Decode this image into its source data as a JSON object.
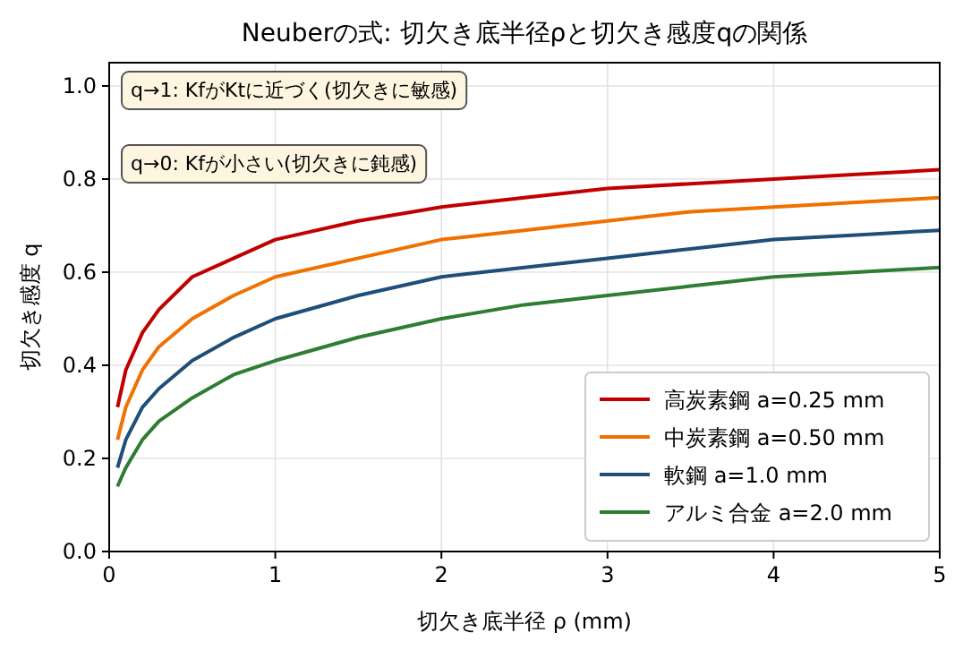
{
  "chart_data": {
    "type": "line",
    "title": "Neuberの式: 切欠き底半径ρと切欠き感度qの関係",
    "xlabel": "切欠き底半径 ρ (mm)",
    "ylabel": "切欠き感度 q",
    "x": [
      0.05,
      0.1,
      0.2,
      0.3,
      0.5,
      0.75,
      1,
      1.5,
      2,
      2.5,
      3,
      3.5,
      4,
      4.5,
      5
    ],
    "series": [
      {
        "name": "高炭素鋼 a=0.25 mm",
        "color": "#c00000",
        "values": [
          0.31,
          0.39,
          0.47,
          0.52,
          0.59,
          0.63,
          0.67,
          0.71,
          0.74,
          0.76,
          0.78,
          0.79,
          0.8,
          0.81,
          0.82
        ]
      },
      {
        "name": "中炭素鋼 a=0.50 mm",
        "color": "#f07000",
        "values": [
          0.24,
          0.31,
          0.39,
          0.44,
          0.5,
          0.55,
          0.59,
          0.63,
          0.67,
          0.69,
          0.71,
          0.73,
          0.74,
          0.75,
          0.76
        ]
      },
      {
        "name": "軟鋼 a=1.0 mm",
        "color": "#1f4e79",
        "values": [
          0.18,
          0.24,
          0.31,
          0.35,
          0.41,
          0.46,
          0.5,
          0.55,
          0.59,
          0.61,
          0.63,
          0.65,
          0.67,
          0.68,
          0.69
        ]
      },
      {
        "name": "アルミ合金 a=2.0 mm",
        "color": "#2e7d32",
        "values": [
          0.14,
          0.18,
          0.24,
          0.28,
          0.33,
          0.38,
          0.41,
          0.46,
          0.5,
          0.53,
          0.55,
          0.57,
          0.59,
          0.6,
          0.61
        ]
      }
    ],
    "xlim": [
      0,
      5
    ],
    "ylim": [
      0,
      1.05
    ],
    "xticks": [
      0,
      1,
      2,
      3,
      4,
      5
    ],
    "yticks": [
      {
        "value": 0,
        "label": "0.0"
      },
      {
        "value": 0.2,
        "label": "0.2"
      },
      {
        "value": 0.4,
        "label": "0.4"
      },
      {
        "value": 0.6,
        "label": "0.6"
      },
      {
        "value": 0.8,
        "label": "0.8"
      },
      {
        "value": 1,
        "label": "1.0"
      }
    ],
    "annotations": [
      "q→1: KfがKtに近づく(切欠きに敏感)",
      "q→0: Kfが小さい(切欠きに鈍感)"
    ],
    "grid": true,
    "legend": "bottom right",
    "line_style": "solid",
    "marker": "none"
  }
}
